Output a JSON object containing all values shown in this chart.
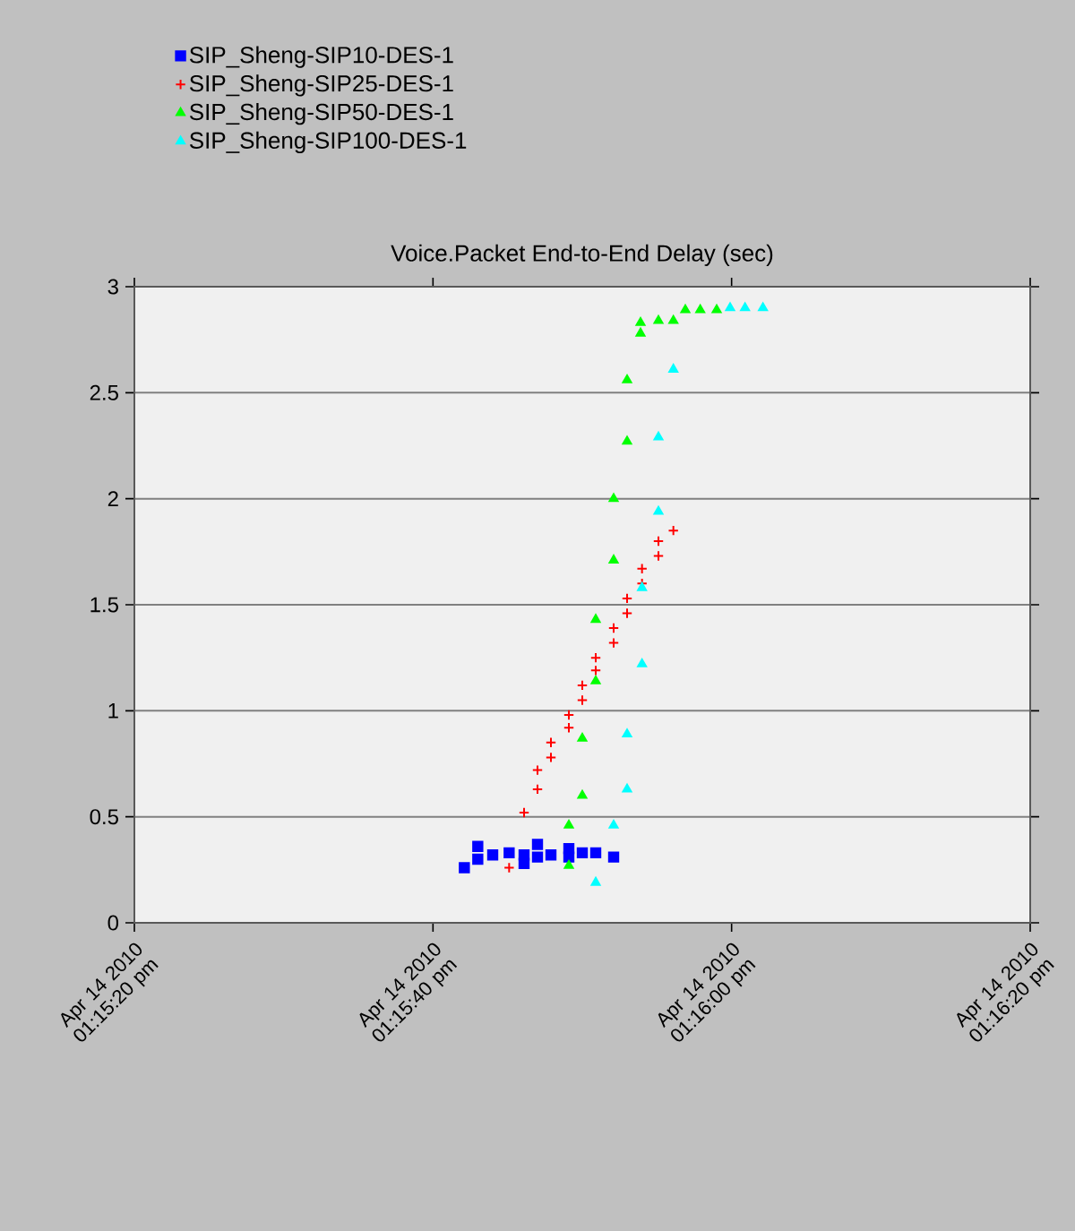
{
  "chart_data": {
    "type": "scatter",
    "title": "Voice.Packet End-to-End Delay (sec)",
    "xlim": [
      "2010-04-14T13:15:20",
      "2010-04-14T13:16:20"
    ],
    "ylim": [
      0,
      3
    ],
    "xticks": [
      {
        "value": "2010-04-14T13:15:20",
        "label": "Apr 14 2010 01:15:20 pm"
      },
      {
        "value": "2010-04-14T13:15:40",
        "label": "Apr 14 2010 01:15:40 pm"
      },
      {
        "value": "2010-04-14T13:16:00",
        "label": "Apr 14 2010 01:16:00 pm"
      },
      {
        "value": "2010-04-14T13:16:20",
        "label": "Apr 14 2010 01:16:20 pm"
      }
    ],
    "yticks": [
      0,
      0.5,
      1,
      1.5,
      2,
      2.5,
      3
    ],
    "grid": "y",
    "legend": "top left",
    "series": [
      {
        "name": "SIP_Sheng-SIP10-DES-1",
        "color": "#0000ff",
        "marker": "square",
        "x": [
          "2010-04-14T13:15:42.1",
          "2010-04-14T13:15:43.0",
          "2010-04-14T13:15:43.0",
          "2010-04-14T13:15:44.0",
          "2010-04-14T13:15:45.1",
          "2010-04-14T13:15:46.1",
          "2010-04-14T13:15:46.1",
          "2010-04-14T13:15:47.0",
          "2010-04-14T13:15:47.0",
          "2010-04-14T13:15:47.9",
          "2010-04-14T13:15:49.1",
          "2010-04-14T13:15:49.1",
          "2010-04-14T13:15:50.0",
          "2010-04-14T13:15:50.9",
          "2010-04-14T13:15:52.1"
        ],
        "values": [
          0.26,
          0.36,
          0.3,
          0.32,
          0.33,
          0.32,
          0.28,
          0.37,
          0.31,
          0.32,
          0.35,
          0.31,
          0.33,
          0.33,
          0.31
        ]
      },
      {
        "name": "SIP_Sheng-SIP25-DES-1",
        "color": "#ff0000",
        "marker": "cross",
        "x": [
          "2010-04-14T13:15:45.1",
          "2010-04-14T13:15:46.1",
          "2010-04-14T13:15:47.0",
          "2010-04-14T13:15:47.0",
          "2010-04-14T13:15:47.9",
          "2010-04-14T13:15:47.9",
          "2010-04-14T13:15:49.1",
          "2010-04-14T13:15:49.1",
          "2010-04-14T13:15:50.0",
          "2010-04-14T13:15:50.0",
          "2010-04-14T13:15:50.9",
          "2010-04-14T13:15:50.9",
          "2010-04-14T13:15:52.1",
          "2010-04-14T13:15:52.1",
          "2010-04-14T13:15:53.0",
          "2010-04-14T13:15:53.0",
          "2010-04-14T13:15:54.0",
          "2010-04-14T13:15:54.0",
          "2010-04-14T13:15:55.1",
          "2010-04-14T13:15:55.1",
          "2010-04-14T13:15:56.1"
        ],
        "values": [
          0.26,
          0.52,
          0.63,
          0.72,
          0.78,
          0.85,
          0.92,
          0.98,
          1.05,
          1.12,
          1.19,
          1.25,
          1.32,
          1.39,
          1.46,
          1.53,
          1.6,
          1.67,
          1.73,
          1.8,
          1.85
        ]
      },
      {
        "name": "SIP_Sheng-SIP50-DES-1",
        "color": "#00ff00",
        "marker": "triangle",
        "x": [
          "2010-04-14T13:15:49.1",
          "2010-04-14T13:15:49.1",
          "2010-04-14T13:15:50.0",
          "2010-04-14T13:15:50.0",
          "2010-04-14T13:15:50.9",
          "2010-04-14T13:15:50.9",
          "2010-04-14T13:15:52.1",
          "2010-04-14T13:15:52.1",
          "2010-04-14T13:15:53.0",
          "2010-04-14T13:15:53.0",
          "2010-04-14T13:15:53.9",
          "2010-04-14T13:15:53.9",
          "2010-04-14T13:15:55.1",
          "2010-04-14T13:15:56.1",
          "2010-04-14T13:15:56.9",
          "2010-04-14T13:15:57.9",
          "2010-04-14T13:15:59.0"
        ],
        "values": [
          0.27,
          0.46,
          0.6,
          0.87,
          1.14,
          1.43,
          1.71,
          2.0,
          2.27,
          2.56,
          2.78,
          2.83,
          2.84,
          2.84,
          2.89,
          2.89,
          2.89
        ]
      },
      {
        "name": "SIP_Sheng-SIP100-DES-1",
        "color": "#00ffff",
        "marker": "triangle",
        "x": [
          "2010-04-14T13:15:50.9",
          "2010-04-14T13:15:52.1",
          "2010-04-14T13:15:53.0",
          "2010-04-14T13:15:53.0",
          "2010-04-14T13:15:54.0",
          "2010-04-14T13:15:54.0",
          "2010-04-14T13:15:55.1",
          "2010-04-14T13:15:55.1",
          "2010-04-14T13:15:56.1",
          "2010-04-14T13:15:59.9",
          "2010-04-14T13:16:00.9",
          "2010-04-14T13:16:02.1"
        ],
        "values": [
          0.19,
          0.46,
          0.63,
          0.89,
          1.22,
          1.58,
          1.94,
          2.29,
          2.61,
          2.9,
          2.9,
          2.9
        ]
      }
    ]
  }
}
